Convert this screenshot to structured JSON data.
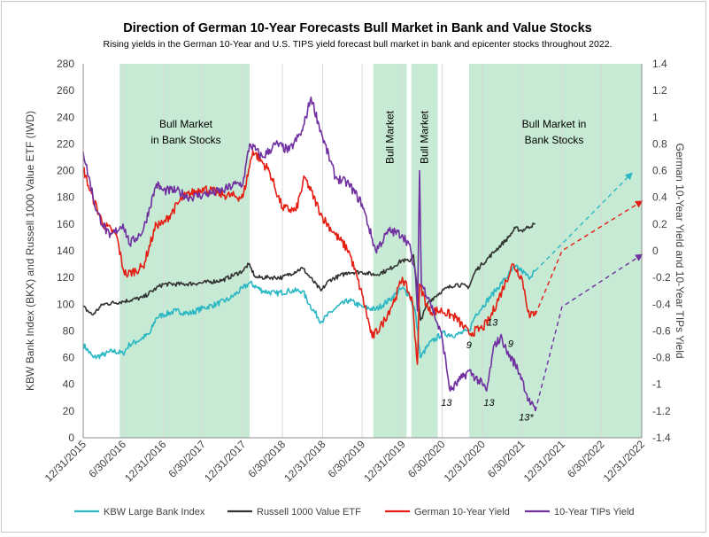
{
  "chart_data": {
    "type": "line",
    "title": "Direction of German 10-Year Forecasts Bull Market in Bank and Value Stocks",
    "subtitle": "Rising yields in the German 10-Year and U.S. TIPS yield forecast bull market in bank and epicenter stocks throughout 2022.",
    "ylabel_left": "KBW Bank Index (BKX) and Russell 1000 Value ETF (IWD)",
    "ylabel_right": "German 10-Year Yield and 10-Year TIPs Yield",
    "ylim_left": [
      0,
      280
    ],
    "ylim_right": [
      -1.4,
      1.4
    ],
    "left_ticks": [
      "0",
      "20",
      "40",
      "60",
      "80",
      "100",
      "120",
      "140",
      "160",
      "180",
      "200",
      "220",
      "240",
      "260",
      "280"
    ],
    "right_ticks": [
      "-1.4",
      "-1.2",
      "-1",
      "-0.8",
      "-0.6",
      "-0.4",
      "-0.2",
      "0",
      "0.2",
      "0.4",
      "0.6",
      "0.8",
      "1",
      "1.2",
      "1.4"
    ],
    "x_ticks": [
      "12/31/2015",
      "6/30/2016",
      "12/31/2016",
      "6/30/2017",
      "12/31/2017",
      "6/30/2018",
      "12/31/2018",
      "6/30/2019",
      "12/31/2019",
      "6/30/2020",
      "12/31/2020",
      "6/30/2021",
      "12/31/2021",
      "6/30/2022",
      "12/31/2022"
    ],
    "xlim": [
      "2015-12-31",
      "2022-12-31"
    ],
    "grid": "vertical",
    "legend_position": "bottom",
    "shaded_regions": [
      {
        "start": "2016-06-15",
        "end": "2018-01-31",
        "label_lines": [
          "Bull Market",
          "in Bank Stocks"
        ],
        "label_orientation": "horizontal"
      },
      {
        "start": "2019-08-20",
        "end": "2020-01-20",
        "label_lines": [
          "Bull Market"
        ],
        "label_orientation": "vertical"
      },
      {
        "start": "2020-02-10",
        "end": "2020-06-10",
        "label_lines": [
          "Bull Market"
        ],
        "label_orientation": "vertical"
      },
      {
        "start": "2020-11-01",
        "end": "2022-12-31",
        "label_lines": [
          "Bull Market in",
          "Bank Stocks"
        ],
        "label_orientation": "horizontal"
      }
    ],
    "series": [
      {
        "name": "KBW Large Bank Index",
        "axis": "left",
        "color": "#2bb7c4",
        "dates": [
          "2015-12-31",
          "2016-02-15",
          "2016-03-31",
          "2016-05-15",
          "2016-06-30",
          "2016-07-31",
          "2016-08-31",
          "2016-10-31",
          "2016-11-30",
          "2016-12-31",
          "2017-02-28",
          "2017-04-30",
          "2017-06-30",
          "2017-08-31",
          "2017-10-31",
          "2017-12-31",
          "2018-01-31",
          "2018-03-31",
          "2018-05-31",
          "2018-07-31",
          "2018-09-30",
          "2018-10-31",
          "2018-12-24",
          "2019-02-28",
          "2019-04-30",
          "2019-06-30",
          "2019-08-31",
          "2019-10-31",
          "2019-12-31",
          "2020-01-31",
          "2020-02-28",
          "2020-03-23",
          "2020-04-30",
          "2020-06-30",
          "2020-08-31",
          "2020-10-31",
          "2020-11-30",
          "2020-12-31",
          "2021-02-28",
          "2021-04-30",
          "2021-05-31",
          "2021-06-30",
          "2021-07-31",
          "2021-08-31"
        ],
        "values": [
          70,
          60,
          62,
          65,
          63,
          70,
          72,
          78,
          90,
          92,
          95,
          93,
          97,
          100,
          104,
          112,
          116,
          110,
          108,
          110,
          110,
          100,
          87,
          97,
          103,
          98,
          96,
          103,
          112,
          107,
          95,
          60,
          70,
          78,
          77,
          80,
          92,
          98,
          110,
          122,
          128,
          125,
          120,
          125
        ]
      },
      {
        "name": "Russell 1000 Value ETF",
        "axis": "left",
        "color": "#333333",
        "dates": [
          "2015-12-31",
          "2016-02-11",
          "2016-03-31",
          "2016-06-30",
          "2016-09-30",
          "2016-11-30",
          "2016-12-31",
          "2017-03-31",
          "2017-06-30",
          "2017-09-30",
          "2017-12-31",
          "2018-01-26",
          "2018-02-28",
          "2018-04-30",
          "2018-06-30",
          "2018-09-30",
          "2018-12-24",
          "2019-01-31",
          "2019-04-30",
          "2019-06-30",
          "2019-08-31",
          "2019-10-31",
          "2019-12-31",
          "2020-01-31",
          "2020-02-20",
          "2020-03-23",
          "2020-04-30",
          "2020-06-30",
          "2020-08-31",
          "2020-10-31",
          "2020-11-30",
          "2020-12-31",
          "2021-02-28",
          "2021-04-30",
          "2021-05-31",
          "2021-06-30",
          "2021-07-31",
          "2021-08-31"
        ],
        "values": [
          98,
          92,
          100,
          102,
          105,
          112,
          115,
          115,
          116,
          118,
          125,
          130,
          120,
          120,
          120,
          127,
          110,
          118,
          124,
          124,
          122,
          126,
          133,
          132,
          137,
          88,
          102,
          110,
          115,
          113,
          125,
          130,
          140,
          150,
          157,
          155,
          158,
          160
        ]
      },
      {
        "name": "German 10-Year Yield",
        "axis": "right",
        "color": "#e41e12",
        "dates": [
          "2015-12-31",
          "2016-01-31",
          "2016-03-31",
          "2016-05-31",
          "2016-06-30",
          "2016-07-15",
          "2016-09-30",
          "2016-11-30",
          "2016-12-31",
          "2017-03-31",
          "2017-06-30",
          "2017-09-30",
          "2017-12-31",
          "2018-02-15",
          "2018-04-30",
          "2018-06-30",
          "2018-08-31",
          "2018-10-10",
          "2018-12-31",
          "2019-02-28",
          "2019-04-30",
          "2019-06-30",
          "2019-08-15",
          "2019-09-30",
          "2019-11-30",
          "2019-12-31",
          "2020-02-15",
          "2020-03-09",
          "2020-03-19",
          "2020-04-30",
          "2020-06-30",
          "2020-08-31",
          "2020-10-31",
          "2020-12-31",
          "2021-01-31",
          "2021-03-31",
          "2021-05-20",
          "2021-06-30",
          "2021-08-05",
          "2021-08-31"
        ],
        "values": [
          0.62,
          0.45,
          0.2,
          0.12,
          -0.13,
          -0.18,
          -0.12,
          0.2,
          0.2,
          0.4,
          0.47,
          0.42,
          0.4,
          0.75,
          0.6,
          0.32,
          0.3,
          0.55,
          0.25,
          0.12,
          0.0,
          -0.33,
          -0.65,
          -0.55,
          -0.35,
          -0.2,
          -0.38,
          -0.85,
          -0.25,
          -0.45,
          -0.45,
          -0.5,
          -0.62,
          -0.58,
          -0.52,
          -0.3,
          -0.1,
          -0.2,
          -0.5,
          -0.45
        ]
      },
      {
        "name": "10-Year TIPs Yield",
        "axis": "right",
        "color": "#7030a0",
        "dates": [
          "2015-12-31",
          "2016-02-29",
          "2016-04-30",
          "2016-06-30",
          "2016-07-31",
          "2016-09-30",
          "2016-11-30",
          "2016-12-31",
          "2017-02-28",
          "2017-04-30",
          "2017-06-30",
          "2017-09-30",
          "2017-11-30",
          "2017-12-31",
          "2018-01-31",
          "2018-03-31",
          "2018-05-31",
          "2018-07-31",
          "2018-09-30",
          "2018-11-08",
          "2018-12-31",
          "2019-02-28",
          "2019-04-30",
          "2019-06-30",
          "2019-08-31",
          "2019-10-31",
          "2019-12-31",
          "2020-01-31",
          "2020-03-01",
          "2020-03-09",
          "2020-03-19",
          "2020-03-27",
          "2020-04-30",
          "2020-06-30",
          "2020-08-06",
          "2020-09-30",
          "2020-10-31",
          "2020-12-31",
          "2021-01-20",
          "2021-02-25",
          "2021-03-31",
          "2021-04-20",
          "2021-05-31",
          "2021-06-30",
          "2021-07-31",
          "2021-08-31"
        ],
        "values": [
          0.74,
          0.3,
          0.1,
          0.2,
          0.05,
          0.15,
          0.5,
          0.45,
          0.45,
          0.4,
          0.42,
          0.45,
          0.5,
          0.5,
          0.8,
          0.7,
          0.8,
          0.75,
          0.9,
          1.15,
          0.85,
          0.55,
          0.5,
          0.35,
          0.0,
          0.15,
          0.12,
          0.05,
          -0.2,
          -0.45,
          0.6,
          -0.25,
          -0.35,
          -0.65,
          -1.05,
          -0.95,
          -0.9,
          -1.0,
          -1.05,
          -0.7,
          -0.65,
          -0.75,
          -0.85,
          -0.95,
          -1.12,
          -1.2
        ]
      }
    ],
    "forecasts": [
      {
        "series": "KBW Large Bank Index",
        "axis": "left",
        "color": "#2bb7c4",
        "dates": [
          "2021-08-31",
          "2022-11-15"
        ],
        "values": [
          125,
          198
        ]
      },
      {
        "series": "German 10-Year Yield",
        "axis": "right",
        "color": "#e41e12",
        "dates": [
          "2021-08-31",
          "2021-12-31",
          "2022-12-31"
        ],
        "values": [
          -0.48,
          0.0,
          0.37
        ]
      },
      {
        "series": "10-Year TIPs Yield",
        "axis": "right",
        "color": "#7030a0",
        "dates": [
          "2021-08-31",
          "2021-12-31",
          "2022-12-31"
        ],
        "values": [
          -1.2,
          -0.42,
          -0.03
        ]
      }
    ],
    "annotations": [
      {
        "text": "13",
        "date": "2020-07-20",
        "left_value": 24
      },
      {
        "text": "9",
        "date": "2020-10-31",
        "left_value": 67
      },
      {
        "text": "13",
        "date": "2021-01-31",
        "left_value": 24
      },
      {
        "text": "13",
        "date": "2021-02-15",
        "left_value": 84
      },
      {
        "text": "9",
        "date": "2021-05-10",
        "left_value": 68
      },
      {
        "text": "13*",
        "date": "2021-07-20",
        "left_value": 13
      }
    ]
  }
}
